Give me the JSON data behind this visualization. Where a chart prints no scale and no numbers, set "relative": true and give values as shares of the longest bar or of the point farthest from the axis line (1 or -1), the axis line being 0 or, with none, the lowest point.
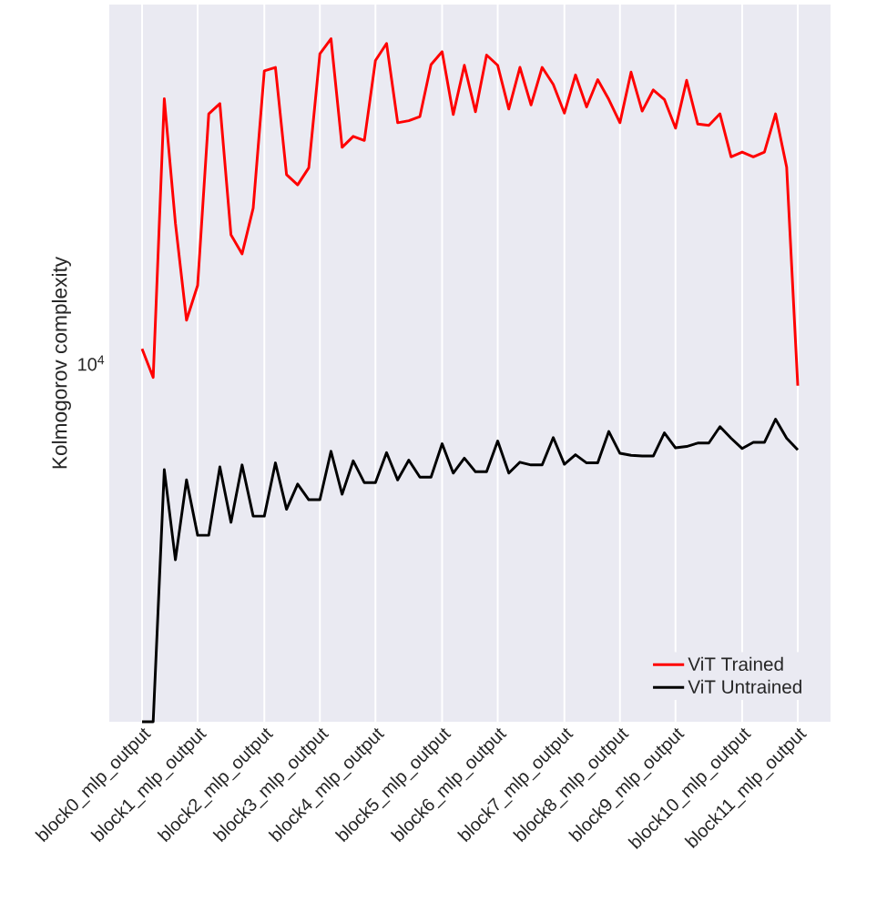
{
  "chart_data": {
    "type": "line",
    "ylabel": "Kolmogorov complexity",
    "relative": true,
    "categories": [
      "block0_mlp_output",
      null,
      null,
      null,
      null,
      "block1_mlp_output",
      null,
      null,
      null,
      null,
      null,
      "block2_mlp_output",
      null,
      null,
      null,
      null,
      "block3_mlp_output",
      null,
      null,
      null,
      null,
      "block4_mlp_output",
      null,
      null,
      null,
      null,
      null,
      "block5_mlp_output",
      null,
      null,
      null,
      null,
      "block6_mlp_output",
      null,
      null,
      null,
      null,
      null,
      "block7_mlp_output",
      null,
      null,
      null,
      null,
      "block8_mlp_output",
      null,
      null,
      null,
      null,
      "block9_mlp_output",
      null,
      null,
      null,
      null,
      null,
      "block10_mlp_output",
      null,
      null,
      null,
      null,
      "block11_mlp_output"
    ],
    "series": [
      {
        "name": "ViT Trained",
        "color": "#ff0000",
        "values": [
          0.546,
          0.504,
          0.912,
          0.73,
          0.588,
          0.639,
          0.89,
          0.905,
          0.713,
          0.685,
          0.752,
          0.953,
          0.958,
          0.801,
          0.786,
          0.811,
          0.978,
          1.0,
          0.841,
          0.857,
          0.851,
          0.968,
          0.993,
          0.877,
          0.88,
          0.886,
          0.962,
          0.981,
          0.889,
          0.961,
          0.893,
          0.976,
          0.961,
          0.897,
          0.958,
          0.903,
          0.958,
          0.933,
          0.891,
          0.947,
          0.9,
          0.94,
          0.911,
          0.877,
          0.951,
          0.894,
          0.925,
          0.911,
          0.869,
          0.939,
          0.875,
          0.873,
          0.89,
          0.827,
          0.834,
          0.827,
          0.834,
          0.89,
          0.812,
          0.492
        ]
      },
      {
        "name": "ViT Untrained",
        "color": "#000000",
        "values": [
          0,
          0,
          0.369,
          0.237,
          0.354,
          0.273,
          0.273,
          0.373,
          0.292,
          0.376,
          0.301,
          0.301,
          0.379,
          0.311,
          0.348,
          0.325,
          0.325,
          0.396,
          0.333,
          0.382,
          0.35,
          0.35,
          0.394,
          0.354,
          0.383,
          0.358,
          0.358,
          0.407,
          0.364,
          0.386,
          0.366,
          0.366,
          0.411,
          0.364,
          0.38,
          0.376,
          0.376,
          0.416,
          0.377,
          0.391,
          0.379,
          0.379,
          0.425,
          0.393,
          0.39,
          0.389,
          0.389,
          0.423,
          0.401,
          0.403,
          0.408,
          0.408,
          0.432,
          0.415,
          0.4,
          0.409,
          0.409,
          0.443,
          0.415,
          0.398
        ]
      }
    ],
    "annotations": [
      "10$^{4}$"
    ],
    "grid": "x",
    "legend": "bottom right",
    "line_style": "solid",
    "marker": "none"
  }
}
